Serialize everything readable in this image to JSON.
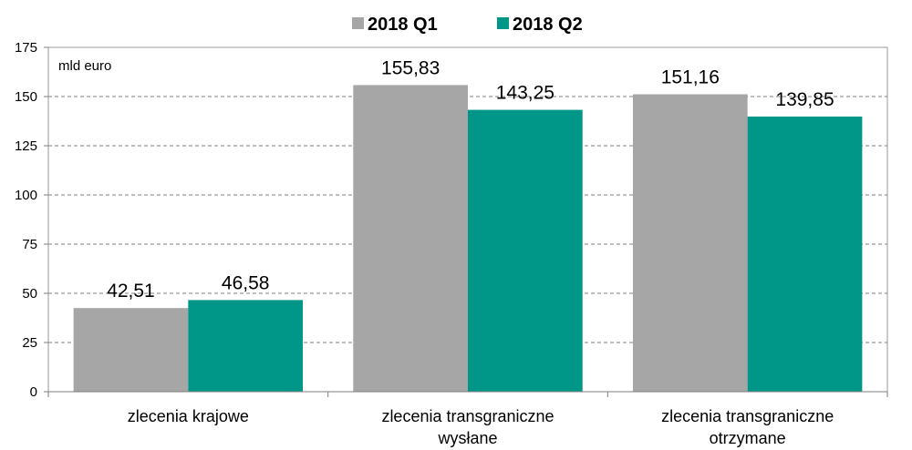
{
  "chart_data": {
    "type": "bar",
    "unit_label": "mld euro",
    "categories": [
      [
        "zlecenia krajowe"
      ],
      [
        "zlecenia transgraniczne",
        "wysłane"
      ],
      [
        "zlecenia transgraniczne",
        "otrzymane"
      ]
    ],
    "series": [
      {
        "name": "2018 Q1",
        "color": "#a6a6a6",
        "values": [
          42.51,
          155.83,
          151.16
        ],
        "labels": [
          "42,51",
          "155,83",
          "151,16"
        ]
      },
      {
        "name": "2018 Q2",
        "color": "#009688",
        "values": [
          46.58,
          143.25,
          139.85
        ],
        "labels": [
          "46,58",
          "143,25",
          "139,85"
        ]
      }
    ],
    "ylim": [
      0,
      175
    ],
    "yticks": [
      0,
      25,
      50,
      75,
      100,
      125,
      150,
      175
    ],
    "grid": true,
    "legend_position": "top"
  }
}
